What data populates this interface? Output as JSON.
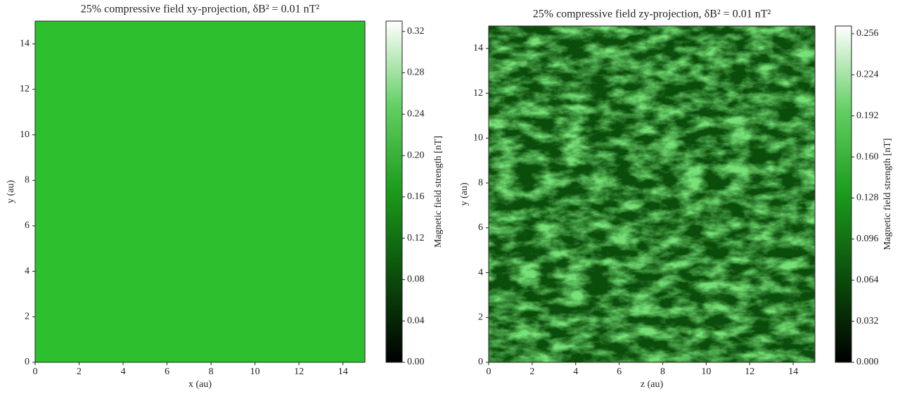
{
  "chart_data": [
    {
      "type": "heatmap",
      "title": "25% compressive field xy-projection, δB² = 0.01 nT²",
      "xlabel": "x (au)",
      "ylabel": "y (au)",
      "colorbar_label": "Magnetic field strength [nT]",
      "xlim": [
        0,
        15
      ],
      "ylim": [
        0,
        15
      ],
      "xticks": [
        0,
        2,
        4,
        6,
        8,
        10,
        12,
        14
      ],
      "yticks": [
        0,
        2,
        4,
        6,
        8,
        10,
        12,
        14
      ],
      "clim": [
        0,
        0.33
      ],
      "cticks": [
        {
          "value": 0,
          "label": "0.00"
        },
        0.04,
        0.08,
        0.12,
        0.16,
        {
          "value": 0.2,
          "label": "0.20"
        },
        0.24,
        0.28,
        0.32
      ],
      "colormap": [
        "#000000",
        "#0b4d0b",
        "#1b9b1b",
        "#63cf63",
        "#ffffff"
      ]
    },
    {
      "type": "heatmap",
      "title": "25% compressive field zy-projection, δB² = 0.01 nT²",
      "xlabel": "z (au)",
      "ylabel": "y (au)",
      "colorbar_label": "Magnetic field strength [nT]",
      "xlim": [
        0,
        15
      ],
      "ylim": [
        0,
        15
      ],
      "xticks": [
        0,
        2,
        4,
        6,
        8,
        10,
        12,
        14
      ],
      "yticks": [
        0,
        2,
        4,
        6,
        8,
        10,
        12,
        14
      ],
      "clim": [
        0,
        0.262
      ],
      "cticks": [
        {
          "value": 0,
          "label": "0.000"
        },
        0.032,
        0.064,
        0.096,
        0.128,
        {
          "value": 0.16,
          "label": "0.160"
        },
        0.192,
        0.224,
        0.256
      ],
      "colormap": [
        "#000000",
        "#0b4d0b",
        "#1b9b1b",
        "#63cf63",
        "#ffffff"
      ]
    }
  ]
}
